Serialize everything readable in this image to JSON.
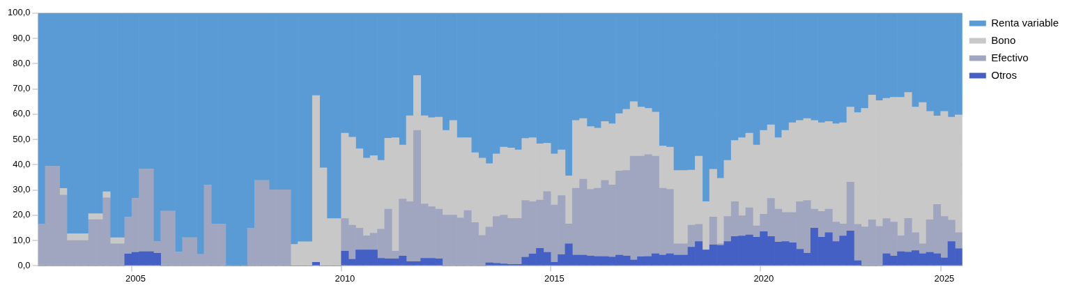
{
  "chart_data": {
    "type": "bar",
    "stacked": true,
    "grid": true,
    "legend": "top right",
    "categories": [
      null,
      null,
      null,
      null,
      null,
      null,
      null,
      null,
      null,
      null,
      null,
      null,
      null,
      "2005",
      null,
      null,
      null,
      null,
      null,
      null,
      null,
      null,
      null,
      null,
      null,
      null,
      null,
      null,
      null,
      null,
      null,
      null,
      null,
      null,
      null,
      null,
      null,
      null,
      null,
      null,
      null,
      null,
      "2010",
      null,
      null,
      null,
      null,
      null,
      null,
      null,
      null,
      null,
      null,
      null,
      null,
      null,
      null,
      null,
      null,
      null,
      null,
      null,
      null,
      null,
      null,
      null,
      null,
      null,
      null,
      null,
      null,
      "2015",
      null,
      null,
      null,
      null,
      null,
      null,
      null,
      null,
      null,
      null,
      null,
      null,
      null,
      null,
      null,
      null,
      null,
      null,
      null,
      null,
      null,
      null,
      null,
      null,
      null,
      null,
      null,
      null,
      "2020",
      null,
      null,
      null,
      null,
      null,
      null,
      null,
      null,
      null,
      null,
      null,
      null,
      null,
      null,
      null,
      null,
      null,
      null,
      null,
      null,
      null,
      null,
      null,
      null,
      "2025",
      null,
      null
    ],
    "ylim": [
      0,
      100
    ],
    "yticks": [
      {
        "value": 0,
        "label": "0,0"
      },
      {
        "value": 10,
        "label": "10,0"
      },
      {
        "value": 20,
        "label": "20,0"
      },
      {
        "value": 30,
        "label": "30,0"
      },
      {
        "value": 40,
        "label": "40,0"
      },
      {
        "value": 50,
        "label": "50,0"
      },
      {
        "value": 60,
        "label": "60,0"
      },
      {
        "value": 70,
        "label": "70,0"
      },
      {
        "value": 80,
        "label": "80,0"
      },
      {
        "value": 90,
        "label": "90,0"
      },
      {
        "value": 100,
        "label": "100,0"
      }
    ],
    "series": [
      {
        "name": "Otros",
        "color": "#4460c4",
        "values": [
          0,
          0,
          0,
          0,
          0,
          0,
          0,
          0,
          0,
          0,
          0,
          0,
          4.7,
          5.3,
          5.6,
          5.6,
          5,
          0,
          0,
          0,
          0,
          0,
          0,
          0,
          0,
          0,
          0,
          0,
          0,
          0,
          0,
          0,
          0,
          0,
          0,
          0,
          0,
          0,
          1.4,
          0,
          0,
          0,
          5.8,
          2.6,
          6.3,
          6.3,
          6.3,
          3.0,
          2.8,
          2.8,
          3.9,
          1.7,
          1.7,
          3.0,
          3.0,
          2.8,
          0,
          0,
          0,
          0,
          0,
          0,
          1.2,
          1.0,
          0.8,
          0.6,
          0.6,
          3.4,
          4.7,
          6.9,
          5.3,
          1.4,
          4.4,
          8.7,
          4.2,
          4.2,
          3.9,
          3.7,
          3.7,
          3.5,
          4.2,
          3.9,
          2.3,
          3.6,
          3.7,
          4.8,
          4.2,
          4.8,
          4.2,
          4.2,
          7.4,
          9.6,
          6.3,
          8.3,
          8.1,
          9.6,
          11.6,
          11.8,
          12.2,
          11.3,
          13.5,
          11.6,
          9.4,
          9.6,
          9.1,
          6.6,
          5.0,
          14.9,
          11.3,
          13.1,
          9.6,
          11.8,
          13.8,
          2.0,
          0,
          0,
          0,
          4.8,
          3.9,
          5.6,
          5.4,
          6.0,
          4.8,
          5.3,
          4.8,
          3.1,
          9.6,
          6.8
        ]
      },
      {
        "name": "Efectivo",
        "color": "#a0a6c0",
        "values": [
          16.6,
          39.3,
          39.3,
          28,
          10,
          10,
          10,
          18.3,
          18.3,
          26.9,
          8.7,
          8.7,
          14.5,
          21.4,
          32.6,
          32.6,
          4.5,
          21.6,
          21.6,
          5.4,
          11.1,
          11.1,
          4.5,
          31.9,
          16.6,
          16.6,
          0,
          0,
          0,
          14.9,
          33.7,
          33.7,
          30.1,
          30.1,
          30.1,
          0,
          0,
          0,
          0,
          0,
          0,
          0,
          12.9,
          13.5,
          8.6,
          5.6,
          6.6,
          11.5,
          19.6,
          3.0,
          22.5,
          23.7,
          51.9,
          21.5,
          20.4,
          19.6,
          20.1,
          20.1,
          19.0,
          21.9,
          17.1,
          12.0,
          14.1,
          18.5,
          19.3,
          18.2,
          18.2,
          22.5,
          20.7,
          19.1,
          24.1,
          22.7,
          23.4,
          7.9,
          26.5,
          30.1,
          26.4,
          27.0,
          30.1,
          28.5,
          33.3,
          33.8,
          41.1,
          39.8,
          40.3,
          38.6,
          26.5,
          25.5,
          4.5,
          4.5,
          8.7,
          6.8,
          0,
          11.0,
          0.6,
          9.9,
          13.8,
          8.0,
          10.8,
          4.5,
          6.9,
          15.1,
          13.0,
          11.5,
          12.0,
          18.8,
          20.9,
          7.5,
          10.2,
          9.3,
          7.7,
          4.8,
          19.3,
          14.4,
          15.4,
          18.2,
          15.6,
          13.9,
          13.4,
          6.3,
          13.4,
          7.1,
          3.9,
          12.9,
          19.5,
          16.4,
          8.5,
          6.3
        ]
      },
      {
        "name": "Bono",
        "color": "#c8c8c8",
        "values": [
          0,
          0,
          0,
          2.6,
          2.7,
          2.7,
          2.7,
          2.3,
          2.3,
          2.4,
          2.4,
          2.4,
          0,
          0,
          0,
          0,
          0,
          0,
          0,
          0,
          0,
          0,
          0,
          0,
          0,
          0,
          0,
          0,
          0,
          0,
          0,
          0,
          0,
          0,
          0,
          8.5,
          9.5,
          9.5,
          66.0,
          38.8,
          18.7,
          18.7,
          33.8,
          34.8,
          31.4,
          30.7,
          30.7,
          27.2,
          28.1,
          44.9,
          21.4,
          34.0,
          21.7,
          34.9,
          35.2,
          36.4,
          33.5,
          37.4,
          31.7,
          28.8,
          27.7,
          30.6,
          25.1,
          24.8,
          26.9,
          27.8,
          27.1,
          24.5,
          25.3,
          22.3,
          19.1,
          20.2,
          18.1,
          19.0,
          26.8,
          24.0,
          24.8,
          23.8,
          23.3,
          24.2,
          22.7,
          24.2,
          21.6,
          19.4,
          18.3,
          17.4,
          16.7,
          16.7,
          29.0,
          29.0,
          21.8,
          27.0,
          19.1,
          18.9,
          25.9,
          22.2,
          24.2,
          30.9,
          29.5,
          32.0,
          33.2,
          29.1,
          28.3,
          32.5,
          35.5,
          32.1,
          32.4,
          35.1,
          35.1,
          34.7,
          38.9,
          40.0,
          29.7,
          44.2,
          46.9,
          49.4,
          49.8,
          47.6,
          49.4,
          54.8,
          49.8,
          49.7,
          55.9,
          42.9,
          35.0,
          41.6,
          40.7,
          46.6
        ]
      },
      {
        "name": "Renta variable",
        "color": "#5b9bd5",
        "values": [
          83.4,
          60.7,
          60.7,
          69.4,
          87.3,
          87.3,
          87.3,
          79.4,
          79.4,
          70.7,
          88.9,
          88.9,
          80.8,
          73.3,
          61.8,
          61.8,
          90.5,
          78.4,
          78.4,
          94.6,
          88.9,
          88.9,
          95.5,
          68.1,
          83.4,
          83.4,
          100,
          100,
          100,
          85.1,
          66.3,
          66.3,
          69.9,
          69.9,
          69.9,
          91.5,
          90.5,
          90.5,
          32.6,
          61.2,
          81.3,
          81.3,
          47.5,
          49.1,
          53.7,
          57.4,
          56.4,
          58.3,
          49.5,
          49.3,
          52.2,
          40.6,
          24.7,
          40.6,
          41.4,
          41.2,
          46.4,
          42.5,
          49.3,
          49.3,
          55.2,
          57.4,
          59.6,
          55.7,
          53.0,
          53.4,
          54.1,
          49.6,
          49.3,
          51.7,
          51.5,
          55.7,
          54.1,
          64.4,
          42.5,
          41.7,
          44.9,
          45.5,
          42.9,
          43.8,
          39.8,
          38.1,
          35.0,
          37.2,
          37.7,
          39.2,
          52.6,
          53.0,
          62.3,
          62.3,
          62.1,
          56.6,
          74.6,
          61.8,
          65.4,
          58.3,
          50.4,
          49.3,
          47.5,
          52.2,
          46.4,
          44.2,
          49.3,
          46.4,
          43.4,
          42.5,
          41.7,
          42.5,
          43.4,
          42.9,
          43.8,
          43.4,
          37.2,
          39.4,
          37.7,
          32.4,
          34.6,
          33.7,
          33.3,
          33.3,
          31.4,
          37.2,
          35.4,
          38.9,
          40.7,
          38.9,
          41.2,
          40.3
        ]
      }
    ]
  }
}
